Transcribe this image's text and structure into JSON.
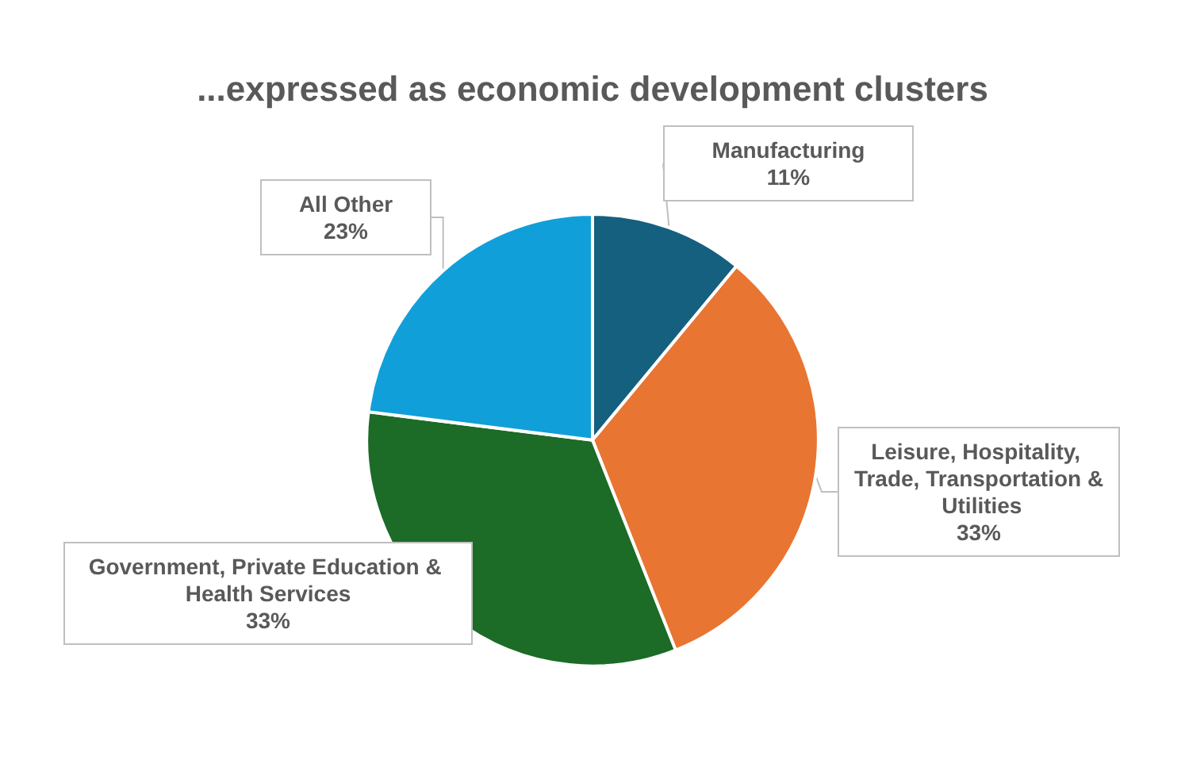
{
  "chart_data": {
    "type": "pie",
    "title": "...expressed as economic development clusters",
    "categories": [
      "Manufacturing",
      "Leisure, Hospitality, Trade, Transportation & Utilities",
      "Government, Private Education & Health Services",
      "All Other"
    ],
    "values": [
      11,
      33,
      33,
      23
    ],
    "value_labels": [
      "11%",
      "33%",
      "33%",
      "23%"
    ],
    "colors": [
      "#15607f",
      "#e87532",
      "#1c6b27",
      "#119fd9"
    ],
    "legend": false
  }
}
